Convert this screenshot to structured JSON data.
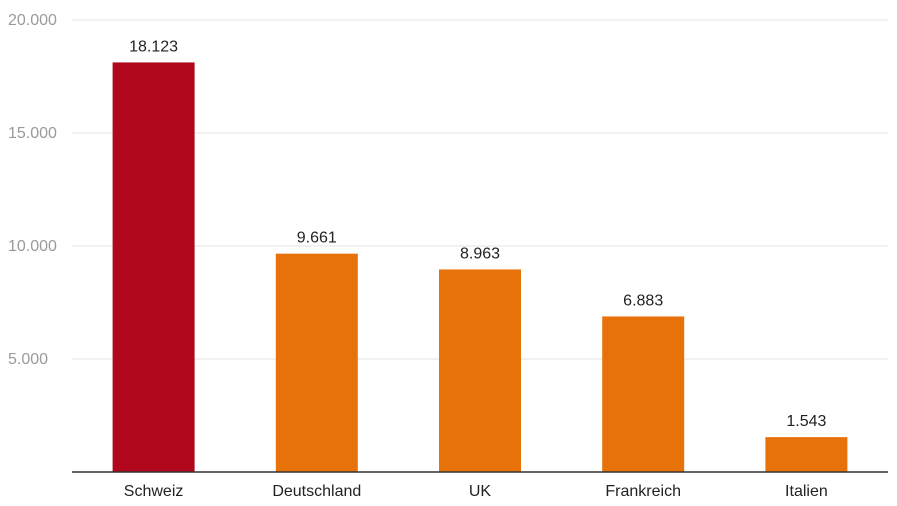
{
  "chart_data": {
    "type": "bar",
    "title": "",
    "xlabel": "",
    "ylabel": "",
    "categories": [
      "Schweiz",
      "Deutschland",
      "UK",
      "Frankreich",
      "Italien"
    ],
    "values": [
      18123,
      9661,
      8963,
      6883,
      1543
    ],
    "value_labels": [
      "18.123",
      "9.661",
      "8.963",
      "6.883",
      "1.543"
    ],
    "highlight_index": 0,
    "ylim": [
      0,
      20000
    ],
    "yticks": [
      5000,
      10000,
      15000,
      20000
    ],
    "ytick_labels": [
      "5.000",
      "10.000",
      "15.000",
      "20.000"
    ],
    "grid": true,
    "legend": "none"
  },
  "colors": {
    "highlight_bar": "#b0071c",
    "default_bar": "#e8720a",
    "gridline": "#e3e3e3",
    "axis_line": "#333333",
    "tick_label": "#9a9a9a",
    "text": "#222222"
  }
}
